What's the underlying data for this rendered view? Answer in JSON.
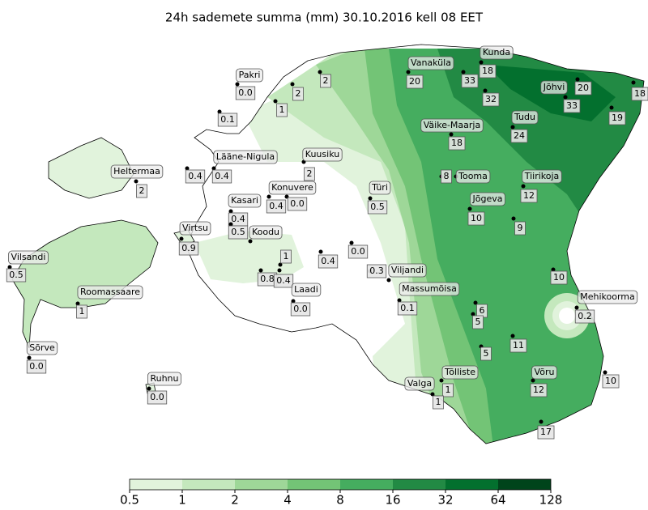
{
  "title": "24h sademete summa (mm) 30.10.2016 kell 08 EET",
  "colorbar": {
    "ticks": [
      0.5,
      1,
      2,
      4,
      8,
      16,
      32,
      64,
      128
    ],
    "colors": [
      "#e1f3dc",
      "#c4e8bd",
      "#9ed798",
      "#73c476",
      "#45ad5f",
      "#228a44",
      "#03702e",
      "#00441b"
    ]
  },
  "stations": [
    {
      "name": "Pakri",
      "value": "0.0"
    },
    {
      "value": "0.1"
    },
    {
      "value": "1"
    },
    {
      "value": "2"
    },
    {
      "value": "2"
    },
    {
      "name": "Vanaküla",
      "value": "20"
    },
    {
      "value": "33"
    },
    {
      "name": "Kunda",
      "value": "18"
    },
    {
      "value": "32"
    },
    {
      "name": "Jõhvi",
      "value": "33"
    },
    {
      "value": "20"
    },
    {
      "value": "18"
    },
    {
      "value": "19"
    },
    {
      "name": "Väike-Maarja",
      "value": "18"
    },
    {
      "name": "Tudu",
      "value": "24"
    },
    {
      "name": "Lääne-Nigula",
      "value": "0.4"
    },
    {
      "value": "0.4"
    },
    {
      "name": "Kuusiku",
      "value": "2"
    },
    {
      "name": "Heltermaa",
      "value": "2"
    },
    {
      "name": "Konuvere",
      "value": "0.4"
    },
    {
      "value": "0.0"
    },
    {
      "name": "Türi",
      "value": "0.5"
    },
    {
      "value": "8"
    },
    {
      "name": "Tooma"
    },
    {
      "name": "Tiirikoja",
      "value": "12"
    },
    {
      "name": "Jõgeva",
      "value": "10"
    },
    {
      "name": "Kasari",
      "value": "0.4"
    },
    {
      "name": "Koodu"
    },
    {
      "value": "0.5"
    },
    {
      "name": "Virtsu",
      "value": "0.9"
    },
    {
      "value": "9"
    },
    {
      "name": "Vilsandi",
      "value": "0.5"
    },
    {
      "value": "1"
    },
    {
      "value": "0.8"
    },
    {
      "value": "0.4"
    },
    {
      "value": "0.4"
    },
    {
      "value": "0.0"
    },
    {
      "value": "0.3"
    },
    {
      "name": "Viljandi"
    },
    {
      "name": "Laadi",
      "value": "0.0"
    },
    {
      "name": "Massumõisa",
      "value": "0.1"
    },
    {
      "name": "Roomassaare",
      "value": "1"
    },
    {
      "value": "10"
    },
    {
      "name": "Mehikoorma",
      "value": "0.2"
    },
    {
      "value": "6"
    },
    {
      "value": "5"
    },
    {
      "value": "5"
    },
    {
      "value": "11"
    },
    {
      "name": "Sõrve",
      "value": "0.0"
    },
    {
      "name": "Tõlliste",
      "value": "1"
    },
    {
      "name": "Valga",
      "value": "1"
    },
    {
      "name": "Võru",
      "value": "12"
    },
    {
      "value": "10"
    },
    {
      "name": "Ruhnu",
      "value": "0.0"
    },
    {
      "value": "17"
    }
  ]
}
